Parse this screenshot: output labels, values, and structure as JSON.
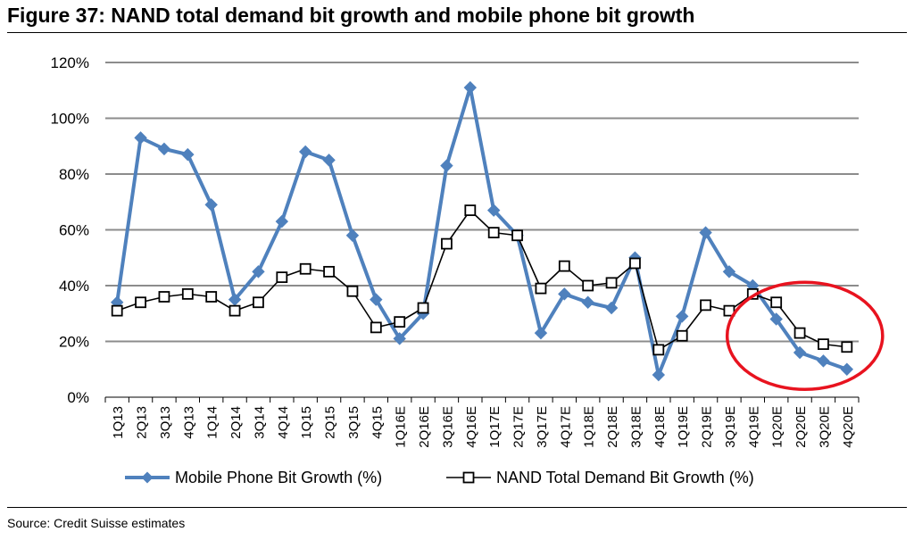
{
  "figure": {
    "title": "Figure 37: NAND total demand bit growth and mobile phone bit growth",
    "source": "Source: Credit Suisse estimates"
  },
  "chart_data": {
    "type": "line",
    "categories": [
      "1Q13",
      "2Q13",
      "3Q13",
      "4Q13",
      "1Q14",
      "2Q14",
      "3Q14",
      "4Q14",
      "1Q15",
      "2Q15",
      "3Q15",
      "4Q15",
      "1Q16E",
      "2Q16E",
      "3Q16E",
      "4Q16E",
      "1Q17E",
      "2Q17E",
      "3Q17E",
      "4Q17E",
      "1Q18E",
      "2Q18E",
      "3Q18E",
      "4Q18E",
      "1Q19E",
      "2Q19E",
      "3Q19E",
      "4Q19E",
      "1Q20E",
      "2Q20E",
      "3Q20E",
      "4Q20E"
    ],
    "series": [
      {
        "name": "Mobile Phone Bit Growth (%)",
        "color": "#4f81bd",
        "marker": "diamond",
        "values": [
          34,
          93,
          89,
          87,
          69,
          35,
          45,
          63,
          88,
          85,
          58,
          35,
          21,
          30,
          83,
          111,
          67,
          58,
          23,
          37,
          34,
          32,
          50,
          8,
          29,
          59,
          45,
          40,
          28,
          16,
          13,
          10
        ]
      },
      {
        "name": "NAND Total Demand Bit Growth (%)",
        "color": "#000000",
        "marker": "square",
        "values": [
          31,
          34,
          36,
          37,
          36,
          31,
          34,
          43,
          46,
          45,
          38,
          25,
          27,
          32,
          55,
          67,
          59,
          58,
          39,
          47,
          40,
          41,
          48,
          17,
          22,
          33,
          31,
          37,
          34,
          23,
          19,
          18
        ]
      }
    ],
    "ylim": [
      0,
      120
    ],
    "yticks": [
      "0%",
      "20%",
      "40%",
      "60%",
      "80%",
      "100%",
      "120%"
    ],
    "grid": true,
    "legend_position": "bottom",
    "annotation": {
      "type": "ellipse",
      "color": "#e8131f",
      "covers": "1Q20E-4Q20E"
    }
  }
}
